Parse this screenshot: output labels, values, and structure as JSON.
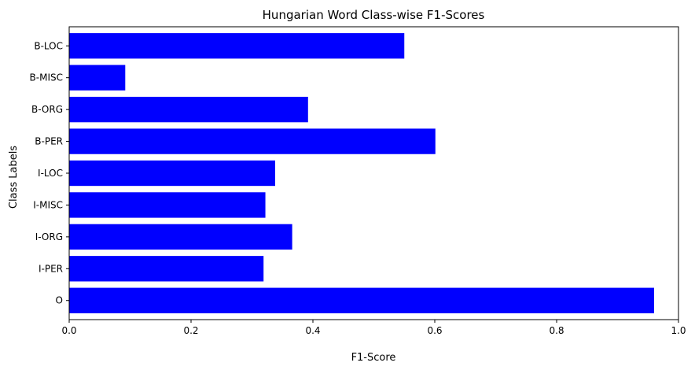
{
  "chart_data": {
    "type": "bar",
    "orientation": "horizontal",
    "title": "Hungarian Word Class-wise F1-Scores",
    "xlabel": "F1-Score",
    "ylabel": "Class Labels",
    "categories": [
      "B-LOC",
      "B-MISC",
      "B-ORG",
      "B-PER",
      "I-LOC",
      "I-MISC",
      "I-ORG",
      "I-PER",
      "O"
    ],
    "values": [
      0.55,
      0.092,
      0.392,
      0.601,
      0.338,
      0.322,
      0.366,
      0.319,
      0.96
    ],
    "xlim": [
      0.0,
      1.0
    ],
    "xticks": [
      "0.0",
      "0.2",
      "0.4",
      "0.6",
      "0.8",
      "1.0"
    ],
    "bar_color": "#0000ff",
    "grid": false,
    "legend": "none"
  }
}
